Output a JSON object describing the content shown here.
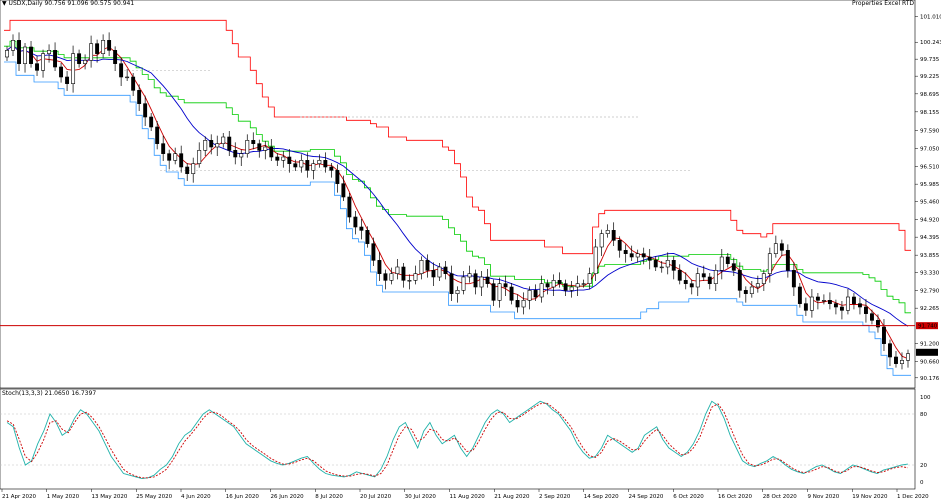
{
  "header": {
    "symbol_line": "USDX,Daily  90.756 91.096 90.575 90.941",
    "right_labels": "Properties   Excel RTD"
  },
  "indicator": {
    "label": "Stoch(13,3,3) 21.0650 16.7397"
  },
  "colors": {
    "background": "#ffffff",
    "candle_body_up": "#ffffff",
    "candle_body_down": "#000000",
    "candle_wick": "#000000",
    "ma_fast": "#cc0000",
    "ma_slow": "#0000cc",
    "band_upper": "#ff0000",
    "band_mid": "#00cc00",
    "band_lower": "#3399ff",
    "hline": "#cc0000",
    "hline_label_bg": "#cc0000",
    "stoch_main": "#20b2aa",
    "stoch_signal": "#cc0000",
    "dotted_level": "#c0c0c0",
    "marker": "#ffcc00",
    "marker_green": "#20b2aa"
  },
  "chart_data": [
    {
      "type": "candlestick",
      "title": "",
      "xlabel": "",
      "ylabel": "",
      "ylim": [
        89.9,
        101.3
      ],
      "grid": false,
      "x_ticks": [
        "21 Apr 2020",
        "1 May 2020",
        "13 May 2020",
        "25 May 2020",
        "4 Jun 2020",
        "16 Jun 2020",
        "26 Jun 2020",
        "8 Jul 2020",
        "20 Jul 2020",
        "30 Jul 2020",
        "11 Aug 2020",
        "21 Aug 2020",
        "2 Sep 2020",
        "14 Sep 2020",
        "24 Sep 2020",
        "6 Oct 2020",
        "16 Oct 2020",
        "28 Oct 2020",
        "9 Nov 2020",
        "19 Nov 2020",
        "1 Dec 2020"
      ],
      "y_ticks": [
        "101.010",
        "100.243",
        "99.735",
        "99.225",
        "98.695",
        "98.155",
        "97.590",
        "97.050",
        "96.510",
        "95.985",
        "95.460",
        "94.920",
        "94.395",
        "93.855",
        "93.330",
        "92.790",
        "92.265",
        "91.740",
        "91.200",
        "90.941",
        "90.660",
        "90.176"
      ],
      "hline_label": "91.740",
      "last_price_label": "90.941",
      "series": [
        {
          "name": "USDX",
          "kind": "ohlc",
          "close": [
            100.0,
            100.3,
            99.6,
            100.1,
            99.6,
            99.4,
            99.9,
            100.0,
            99.5,
            99.2,
            99.0,
            99.9,
            99.6,
            99.7,
            100.2,
            99.9,
            100.3,
            100.0,
            99.6,
            99.2,
            99.2,
            98.8,
            98.4,
            98.0,
            97.7,
            97.2,
            96.9,
            96.7,
            96.9,
            96.5,
            96.3,
            96.6,
            97.0,
            97.3,
            97.1,
            97.2,
            97.4,
            97.0,
            96.8,
            96.9,
            97.3,
            97.2,
            97.0,
            97.1,
            96.8,
            96.7,
            96.8,
            96.6,
            96.5,
            96.7,
            96.4,
            96.6,
            96.7,
            96.5,
            96.4,
            96.0,
            95.6,
            95.0,
            94.7,
            94.6,
            94.2,
            93.7,
            93.3,
            93.1,
            93.3,
            93.5,
            93.1,
            93.1,
            93.3,
            93.7,
            93.4,
            93.2,
            93.5,
            93.3,
            92.7,
            92.8,
            93.2,
            93.3,
            92.9,
            93.2,
            93.0,
            92.5,
            93.0,
            92.9,
            92.5,
            92.3,
            92.5,
            92.8,
            92.6,
            93.0,
            92.9,
            93.1,
            93.0,
            92.8,
            92.9,
            93.0,
            93.0,
            93.3,
            94.1,
            94.5,
            94.6,
            94.3,
            94.0,
            93.9,
            93.8,
            93.9,
            93.8,
            93.7,
            93.5,
            93.5,
            93.7,
            93.4,
            93.1,
            93.0,
            92.9,
            93.3,
            93.2,
            93.0,
            93.4,
            93.8,
            93.6,
            93.4,
            92.8,
            92.7,
            92.9,
            93.0,
            93.3,
            93.9,
            94.2,
            94.0,
            93.4,
            92.9,
            92.4,
            92.2,
            92.6,
            92.5,
            92.5,
            92.4,
            92.3,
            92.2,
            92.6,
            92.4,
            92.3,
            92.1,
            91.9,
            91.7,
            91.2,
            90.8,
            90.6,
            90.7,
            90.9
          ]
        },
        {
          "name": "MA fast",
          "kind": "line"
        },
        {
          "name": "MA slow",
          "kind": "line"
        }
      ]
    },
    {
      "type": "line",
      "title": "",
      "ylim": [
        0,
        100
      ],
      "y_ticks": [
        "100",
        "80",
        "20",
        "0"
      ],
      "series": [
        {
          "name": "%K",
          "values": [
            70,
            65,
            40,
            20,
            25,
            45,
            60,
            80,
            70,
            55,
            60,
            75,
            85,
            80,
            70,
            60,
            45,
            30,
            20,
            10,
            8,
            6,
            4,
            5,
            8,
            15,
            20,
            30,
            45,
            55,
            60,
            70,
            80,
            85,
            80,
            75,
            70,
            65,
            55,
            45,
            40,
            35,
            30,
            25,
            22,
            20,
            22,
            25,
            28,
            30,
            22,
            15,
            10,
            8,
            7,
            6,
            8,
            12,
            10,
            8,
            6,
            15,
            30,
            50,
            65,
            70,
            55,
            40,
            60,
            70,
            55,
            45,
            50,
            55,
            40,
            30,
            40,
            55,
            70,
            80,
            85,
            80,
            70,
            75,
            80,
            85,
            90,
            95,
            92,
            85,
            80,
            70,
            60,
            45,
            35,
            28,
            30,
            40,
            55,
            50,
            45,
            40,
            35,
            40,
            55,
            60,
            65,
            50,
            40,
            35,
            30,
            35,
            45,
            60,
            80,
            95,
            90,
            75,
            55,
            40,
            25,
            20,
            18,
            22,
            25,
            30,
            26,
            20,
            15,
            12,
            10,
            14,
            18,
            20,
            16,
            12,
            10,
            15,
            20,
            18,
            15,
            12,
            10,
            14,
            16,
            18,
            20,
            21
          ]
        },
        {
          "name": "%D",
          "values": [
            72,
            68,
            50,
            30,
            24,
            35,
            50,
            70,
            72,
            62,
            58,
            70,
            80,
            82,
            75,
            65,
            52,
            38,
            26,
            15,
            10,
            7,
            5,
            5,
            6,
            10,
            15,
            25,
            37,
            48,
            56,
            65,
            75,
            82,
            82,
            78,
            72,
            67,
            60,
            50,
            43,
            38,
            33,
            28,
            24,
            21,
            21,
            23,
            26,
            28,
            25,
            19,
            13,
            10,
            8,
            7,
            7,
            9,
            10,
            9,
            7,
            10,
            20,
            38,
            55,
            65,
            62,
            48,
            52,
            62,
            60,
            50,
            48,
            52,
            45,
            36,
            37,
            48,
            62,
            74,
            82,
            82,
            75,
            74,
            78,
            83,
            88,
            92,
            93,
            88,
            82,
            74,
            65,
            52,
            40,
            31,
            29,
            35,
            48,
            51,
            48,
            43,
            38,
            38,
            48,
            56,
            62,
            55,
            45,
            38,
            32,
            33,
            40,
            52,
            70,
            88,
            92,
            82,
            65,
            48,
            32,
            22,
            19,
            20,
            23,
            27,
            27,
            22,
            17,
            13,
            11,
            12,
            15,
            18,
            17,
            13,
            11,
            13,
            18,
            18,
            16,
            13,
            11,
            12,
            15,
            17,
            18,
            16.7
          ]
        }
      ]
    }
  ]
}
